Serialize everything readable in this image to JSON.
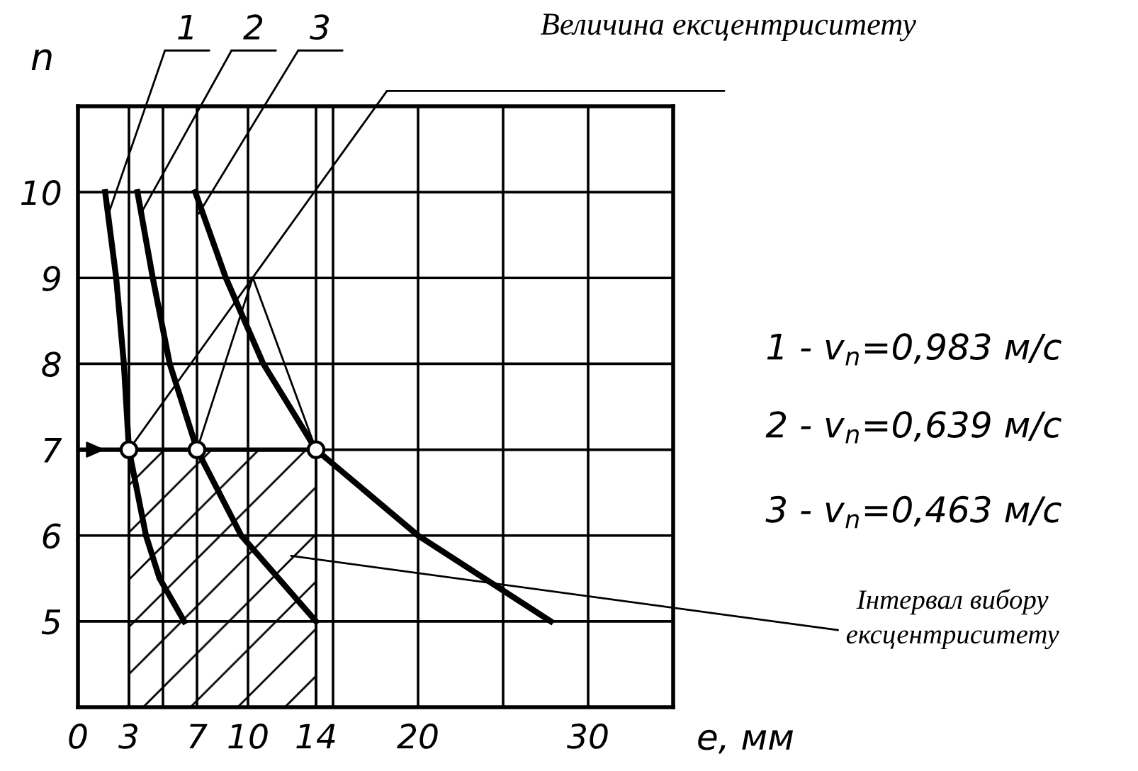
{
  "chart_data": {
    "type": "line",
    "xlabel": "e, мм",
    "ylabel": "n",
    "xlim": [
      0,
      35
    ],
    "ylim": [
      4,
      11
    ],
    "xticks": [
      0,
      3,
      {
        "value": 5,
        "label": null
      },
      7,
      10,
      14,
      {
        "value": 15,
        "label": null
      },
      20,
      {
        "value": 25,
        "label": null
      },
      30
    ],
    "yticks": [
      {
        "value": 4,
        "label": null
      },
      5,
      6,
      7,
      8,
      9,
      10
    ],
    "grid": true,
    "legend": false,
    "marker": "none",
    "ref_lines": [
      {
        "axis": "y",
        "value": 7
      }
    ],
    "series": [
      {
        "name": "1",
        "color": "#000000",
        "x": [
          1.6,
          2.25,
          2.7,
          3,
          4,
          4.8,
          6.25
        ],
        "values": [
          10,
          9,
          8,
          7,
          6,
          5.5,
          5
        ]
      },
      {
        "name": "2",
        "color": "#000000",
        "x": [
          3.5,
          4.4,
          5.4,
          7,
          9.6,
          14
        ],
        "values": [
          10,
          9,
          8,
          7,
          6,
          5
        ]
      },
      {
        "name": "3",
        "color": "#000000",
        "x": [
          6.9,
          8.7,
          10.9,
          14,
          20,
          27.8
        ],
        "values": [
          10,
          9,
          8,
          7,
          6,
          5
        ]
      },
      {
        "type": "scatter",
        "marker": "circle",
        "color": "#000000",
        "x": [
          3,
          7,
          14
        ],
        "values": [
          7,
          7,
          7
        ]
      }
    ],
    "bands": [
      {
        "axis": "x",
        "from": 3,
        "to": 14,
        "label": "Інтервал вибору ексцентриситету"
      }
    ],
    "annotations": [
      "Величина ексцентриситету",
      "1 - v$_{n}$=0,983 м/с",
      "2 - v$_{n}$=0,639 м/с",
      "3 - v$_{n}$=0,463 м/с"
    ]
  }
}
